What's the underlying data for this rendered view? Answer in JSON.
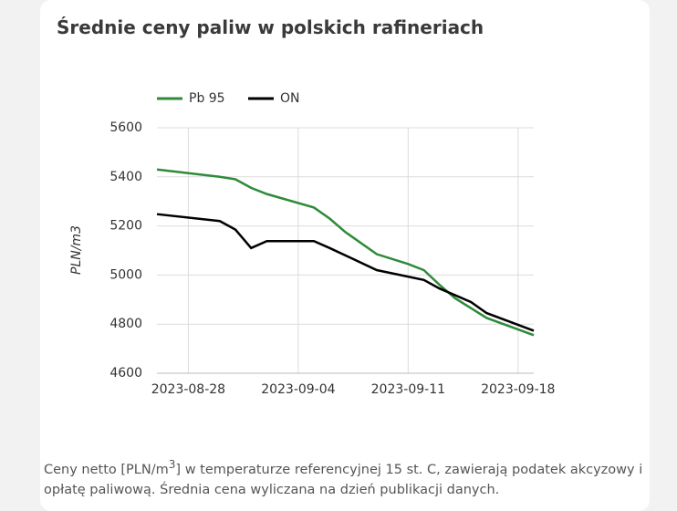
{
  "chart_data": {
    "type": "line",
    "title": "Średnie ceny paliw w polskich rafineriach",
    "y_label": "PLN/m3",
    "xlim": [
      "2023-08-26",
      "2023-09-19"
    ],
    "xticks": [
      "2023-08-28",
      "2023-09-04",
      "2023-09-11",
      "2023-09-18"
    ],
    "ylim": [
      4600,
      5600
    ],
    "yticks": [
      4600,
      4800,
      5000,
      5200,
      5400,
      5600
    ],
    "grid": true,
    "legend": "top",
    "series": [
      {
        "name": "Pb 95",
        "color": "#2e8b3a",
        "x": [
          "2023-08-26",
          "2023-08-30",
          "2023-08-31",
          "2023-09-01",
          "2023-09-02",
          "2023-09-05",
          "2023-09-06",
          "2023-09-07",
          "2023-09-09",
          "2023-09-11",
          "2023-09-12",
          "2023-09-13",
          "2023-09-14",
          "2023-09-15",
          "2023-09-16",
          "2023-09-19"
        ],
        "values": [
          5430,
          5400,
          5390,
          5355,
          5330,
          5275,
          5230,
          5175,
          5085,
          5045,
          5020,
          4960,
          4905,
          4865,
          4825,
          4755
        ]
      },
      {
        "name": "ON",
        "color": "#000000",
        "x": [
          "2023-08-26",
          "2023-08-30",
          "2023-08-31",
          "2023-09-01",
          "2023-09-02",
          "2023-09-05",
          "2023-09-06",
          "2023-09-07",
          "2023-09-09",
          "2023-09-12",
          "2023-09-13",
          "2023-09-15",
          "2023-09-16",
          "2023-09-19"
        ],
        "values": [
          5248,
          5220,
          5185,
          5110,
          5138,
          5138,
          5110,
          5080,
          5020,
          4980,
          4945,
          4890,
          4845,
          4773
        ]
      }
    ],
    "footnote": [
      "Ceny netto [PLN/m",
      "3",
      "] w temperaturze referencyjnej 15 st. C, zawierają podatek akcyzowy i opłatę paliwową. Średnia cena wyliczana na dzień publikacji danych."
    ]
  }
}
